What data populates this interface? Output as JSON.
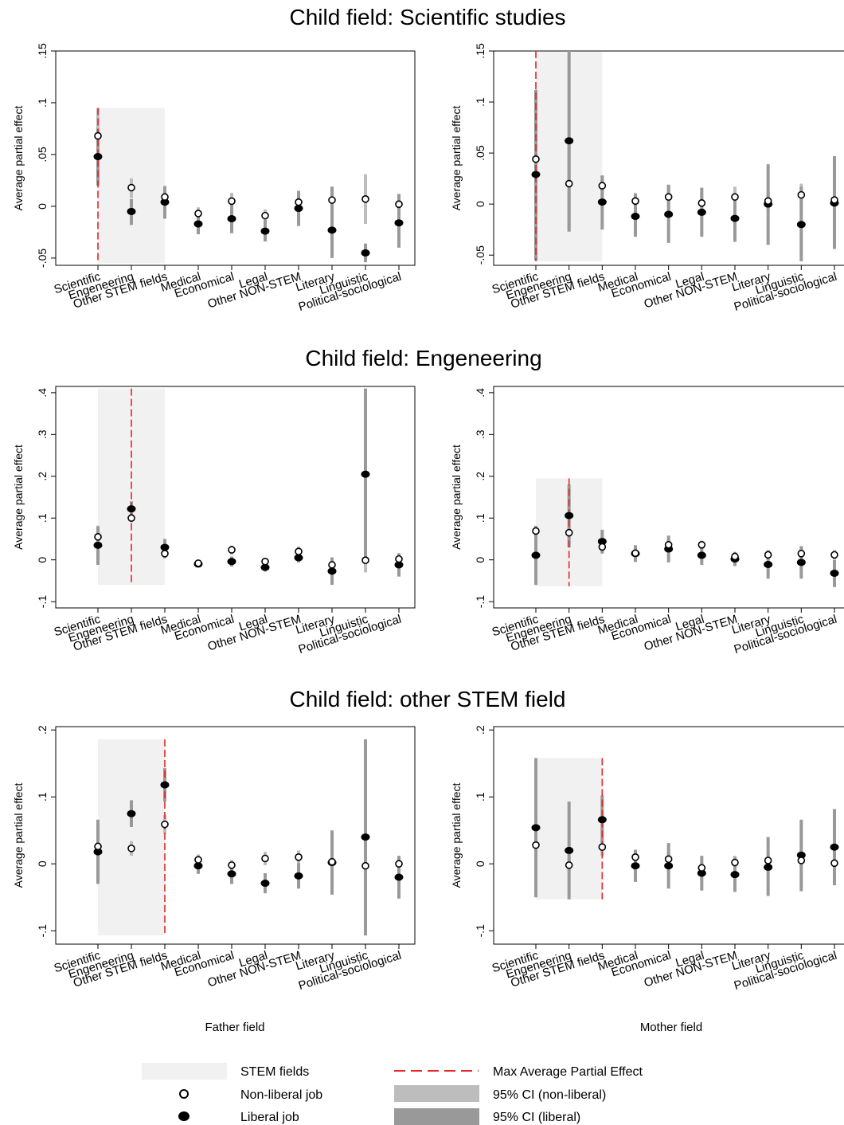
{
  "figure": {
    "row_titles": [
      "Child field: Scientific studies",
      "Child field: Engeneering",
      "Child field: other STEM field"
    ],
    "xlabels": [
      "Father field",
      "Mother field"
    ]
  },
  "colors": {
    "stem_shade": "#f1f1f1",
    "max_line": "#e32626",
    "ci_nonliberal": "#bdbdbd",
    "ci_liberal": "#999999",
    "marker": "#000000"
  },
  "legend": {
    "stem": "STEM fields",
    "nonliberal": "Non-liberal job",
    "liberal": "Liberal job",
    "maxline": "Max Average Partial Effect",
    "ci_nonliberal": "95% CI (non-liberal)",
    "ci_liberal": "95% CI (liberal)"
  },
  "chart_data": [
    {
      "type": "scatter",
      "title": "Child field: Scientific studies",
      "xlabel": "",
      "ylabel": "Average partial effect",
      "categories": [
        "Scientific",
        "Engeneering",
        "Other STEM fields",
        "Medical",
        "Economical",
        "Legal",
        "Other NON-STEM",
        "Literary",
        "Linguistic",
        "Political-sociological"
      ],
      "ylim": [
        -0.057,
        0.15
      ],
      "yticks": [
        -0.05,
        0,
        0.05,
        0.1,
        0.15
      ],
      "yticklabels": [
        "-.05",
        "0",
        ".05",
        ".1",
        ".15"
      ],
      "stem_shade": {
        "from": 0,
        "to": 2,
        "ylim": [
          -0.055,
          0.095
        ]
      },
      "max_effect_index": 0,
      "max_line_top": 0.095,
      "series": [
        {
          "name": "Non-liberal job",
          "values": [
            0.068,
            0.018,
            0.009,
            -0.007,
            0.005,
            -0.009,
            0.004,
            0.006,
            0.007,
            0.002
          ],
          "ci_low": [
            0.04,
            0.008,
            -0.002,
            -0.013,
            -0.003,
            -0.015,
            -0.004,
            -0.002,
            -0.017,
            -0.006
          ],
          "ci_high": [
            0.095,
            0.027,
            0.02,
            -0.001,
            0.013,
            -0.003,
            0.012,
            0.015,
            0.031,
            0.01
          ]
        },
        {
          "name": "Liberal job",
          "values": [
            0.048,
            -0.005,
            0.004,
            -0.017,
            -0.012,
            -0.024,
            -0.002,
            -0.023,
            -0.045,
            -0.016
          ],
          "ci_low": [
            0.02,
            -0.018,
            -0.012,
            -0.027,
            -0.026,
            -0.034,
            -0.019,
            -0.05,
            -0.054,
            -0.04
          ],
          "ci_high": [
            0.075,
            0.007,
            0.019,
            -0.006,
            0.002,
            -0.013,
            0.015,
            0.019,
            -0.036,
            0.012
          ]
        }
      ]
    },
    {
      "type": "scatter",
      "title": "Child field: Scientific studies",
      "xlabel": "",
      "ylabel": "Average partial effect",
      "categories": [
        "Scientific",
        "Engeneering",
        "Other STEM fields",
        "Medical",
        "Economical",
        "Legal",
        "Other NON-STEM",
        "Literary",
        "Linguistic",
        "Political-sociological"
      ],
      "ylim": [
        -0.06,
        0.15
      ],
      "yticks": [
        -0.05,
        0,
        0.05,
        0.1,
        0.15
      ],
      "yticklabels": [
        "-.05",
        "0",
        ".05",
        ".1",
        ".15"
      ],
      "stem_shade": {
        "from": 0,
        "to": 2,
        "ylim": [
          -0.056,
          0.149
        ]
      },
      "max_effect_index": 0,
      "max_line_top": 0.15,
      "series": [
        {
          "name": "Non-liberal job",
          "values": [
            0.044,
            0.02,
            0.018,
            0.003,
            0.007,
            0.001,
            0.007,
            0.003,
            0.009,
            0.004
          ],
          "ci_low": [
            -0.02,
            -0.026,
            0.005,
            -0.006,
            -0.004,
            -0.006,
            -0.004,
            -0.007,
            -0.003,
            -0.002
          ],
          "ci_high": [
            0.11,
            0.066,
            0.028,
            0.011,
            0.018,
            0.009,
            0.017,
            0.013,
            0.02,
            0.01
          ]
        },
        {
          "name": "Liberal job",
          "values": [
            0.029,
            0.062,
            0.002,
            -0.012,
            -0.01,
            -0.008,
            -0.014,
            0.0,
            -0.02,
            0.001
          ],
          "ci_low": [
            -0.055,
            -0.027,
            -0.025,
            -0.032,
            -0.038,
            -0.032,
            -0.037,
            -0.04,
            -0.056,
            -0.044
          ],
          "ci_high": [
            0.112,
            0.15,
            0.028,
            0.01,
            0.019,
            0.016,
            0.009,
            0.039,
            0.017,
            0.047
          ]
        }
      ]
    },
    {
      "type": "scatter",
      "title": "Child field: Engeneering",
      "xlabel": "",
      "ylabel": "Average partial effect",
      "categories": [
        "Scientific",
        "Engeneering",
        "Other STEM fields",
        "Medical",
        "Economical",
        "Legal",
        "Other NON-STEM",
        "Literary",
        "Linguistic",
        "Political-sociological"
      ],
      "ylim": [
        -0.115,
        0.415
      ],
      "yticks": [
        -0.1,
        0,
        0.1,
        0.2,
        0.3,
        0.4
      ],
      "yticklabels": [
        "-.1",
        "0",
        ".1",
        ".2",
        ".3",
        ".4"
      ],
      "stem_shade": {
        "from": 0,
        "to": 2,
        "ylim": [
          -0.06,
          0.41
        ]
      },
      "max_effect_index": 1,
      "max_line_top": 0.41,
      "series": [
        {
          "name": "Non-liberal job",
          "values": [
            0.055,
            0.1,
            0.015,
            -0.008,
            0.024,
            -0.004,
            0.02,
            -0.012,
            -0.001,
            0.002
          ],
          "ci_low": [
            0.035,
            0.09,
            0.003,
            -0.015,
            0.012,
            -0.012,
            0.008,
            -0.024,
            -0.03,
            -0.01
          ],
          "ci_high": [
            0.082,
            0.112,
            0.028,
            -0.001,
            0.034,
            0.004,
            0.032,
            0.0,
            0.03,
            0.014
          ]
        },
        {
          "name": "Liberal job",
          "values": [
            0.035,
            0.122,
            0.03,
            -0.01,
            -0.004,
            -0.018,
            0.005,
            -0.027,
            0.205,
            -0.012
          ],
          "ci_low": [
            -0.012,
            0.104,
            0.01,
            -0.018,
            -0.016,
            -0.028,
            -0.006,
            -0.06,
            0.0,
            -0.04
          ],
          "ci_high": [
            0.08,
            0.14,
            0.05,
            -0.003,
            0.008,
            -0.008,
            0.016,
            0.006,
            0.41,
            0.016
          ]
        }
      ]
    },
    {
      "type": "scatter",
      "title": "Child field: Engeneering",
      "xlabel": "",
      "ylabel": "Average partial effect",
      "categories": [
        "Scientific",
        "Engeneering",
        "Other STEM fields",
        "Medical",
        "Economical",
        "Legal",
        "Other NON-STEM",
        "Literary",
        "Linguistic",
        "Political-sociological"
      ],
      "ylim": [
        -0.115,
        0.415
      ],
      "yticks": [
        -0.1,
        0,
        0.1,
        0.2,
        0.3,
        0.4
      ],
      "yticklabels": [
        "-.1",
        "0",
        ".1",
        ".2",
        ".3",
        ".4"
      ],
      "stem_shade": {
        "from": 0,
        "to": 2,
        "ylim": [
          -0.063,
          0.195
        ]
      },
      "max_effect_index": 1,
      "max_line_top": 0.195,
      "series": [
        {
          "name": "Non-liberal job",
          "values": [
            0.069,
            0.065,
            0.031,
            0.016,
            0.036,
            0.036,
            0.008,
            0.012,
            0.015,
            0.012
          ],
          "ci_low": [
            0.055,
            0.05,
            0.02,
            0.006,
            0.022,
            0.026,
            -0.002,
            0.001,
            0.002,
            0.001
          ],
          "ci_high": [
            0.082,
            0.08,
            0.042,
            0.026,
            0.05,
            0.046,
            0.018,
            0.024,
            0.03,
            0.024
          ]
        },
        {
          "name": "Liberal job",
          "values": [
            0.011,
            0.106,
            0.044,
            0.015,
            0.026,
            0.011,
            0.002,
            -0.011,
            -0.006,
            -0.032
          ],
          "ci_low": [
            -0.06,
            0.03,
            0.015,
            -0.005,
            -0.006,
            -0.012,
            -0.015,
            -0.045,
            -0.045,
            -0.065
          ],
          "ci_high": [
            0.08,
            0.18,
            0.072,
            0.035,
            0.058,
            0.034,
            0.019,
            0.022,
            0.033,
            0.0
          ]
        }
      ]
    },
    {
      "type": "scatter",
      "title": "Child field: other STEM field",
      "xlabel": "Father field",
      "ylabel": "Average partial effect",
      "categories": [
        "Scientific",
        "Engeneering",
        "Other STEM fields",
        "Medical",
        "Economical",
        "Legal",
        "Other NON-STEM",
        "Literary",
        "Linguistic",
        "Political-sociological"
      ],
      "ylim": [
        -0.12,
        0.205
      ],
      "yticks": [
        -0.1,
        0,
        0.1,
        0.2
      ],
      "yticklabels": [
        "-.1",
        "0",
        ".1",
        ".2"
      ],
      "stem_shade": {
        "from": 0,
        "to": 2,
        "ylim": [
          -0.107,
          0.186
        ]
      },
      "max_effect_index": 2,
      "max_line_top": 0.186,
      "series": [
        {
          "name": "Non-liberal job",
          "values": [
            0.026,
            0.023,
            0.059,
            0.006,
            -0.002,
            0.008,
            0.01,
            0.003,
            -0.003,
            0.0
          ],
          "ci_low": [
            0.01,
            0.012,
            0.045,
            -0.002,
            -0.01,
            -0.002,
            0.0,
            -0.006,
            -0.012,
            -0.008
          ],
          "ci_high": [
            0.04,
            0.034,
            0.073,
            0.014,
            0.006,
            0.018,
            0.02,
            0.012,
            0.006,
            0.008
          ]
        },
        {
          "name": "Liberal job",
          "values": [
            0.018,
            0.075,
            0.118,
            -0.003,
            -0.015,
            -0.029,
            -0.018,
            0.002,
            0.04,
            -0.02
          ],
          "ci_low": [
            -0.03,
            0.055,
            0.093,
            -0.015,
            -0.03,
            -0.044,
            -0.037,
            -0.046,
            -0.107,
            -0.052
          ],
          "ci_high": [
            0.066,
            0.095,
            0.143,
            0.01,
            0.0,
            -0.014,
            0.001,
            0.05,
            0.186,
            0.012
          ]
        }
      ]
    },
    {
      "type": "scatter",
      "title": "Child field: other STEM field",
      "xlabel": "Mother field",
      "ylabel": "Average partial effect",
      "categories": [
        "Scientific",
        "Engeneering",
        "Other STEM fields",
        "Medical",
        "Economical",
        "Legal",
        "Other NON-STEM",
        "Literary",
        "Linguistic",
        "Political-sociological"
      ],
      "ylim": [
        -0.12,
        0.205
      ],
      "yticks": [
        -0.1,
        0,
        0.1,
        0.2
      ],
      "yticklabels": [
        "-.1",
        "0",
        ".1",
        ".2"
      ],
      "stem_shade": {
        "from": 0,
        "to": 2,
        "ylim": [
          -0.053,
          0.158
        ]
      },
      "max_effect_index": 2,
      "max_line_top": 0.158,
      "series": [
        {
          "name": "Non-liberal job",
          "values": [
            0.028,
            -0.002,
            0.025,
            0.01,
            0.007,
            -0.006,
            0.002,
            0.005,
            0.005,
            0.001
          ],
          "ci_low": [
            0.014,
            -0.012,
            0.012,
            0.0,
            -0.003,
            -0.014,
            -0.008,
            -0.005,
            -0.005,
            -0.009
          ],
          "ci_high": [
            0.042,
            0.008,
            0.038,
            0.02,
            0.017,
            0.002,
            0.012,
            0.015,
            0.015,
            0.011
          ]
        },
        {
          "name": "Liberal job",
          "values": [
            0.054,
            0.02,
            0.066,
            -0.003,
            -0.003,
            -0.014,
            -0.016,
            -0.005,
            0.013,
            0.025
          ],
          "ci_low": [
            -0.05,
            -0.053,
            0.03,
            -0.027,
            -0.037,
            -0.04,
            -0.042,
            -0.048,
            -0.041,
            -0.032
          ],
          "ci_high": [
            0.158,
            0.093,
            0.102,
            0.021,
            0.031,
            0.012,
            0.01,
            0.04,
            0.066,
            0.082
          ]
        }
      ]
    }
  ]
}
